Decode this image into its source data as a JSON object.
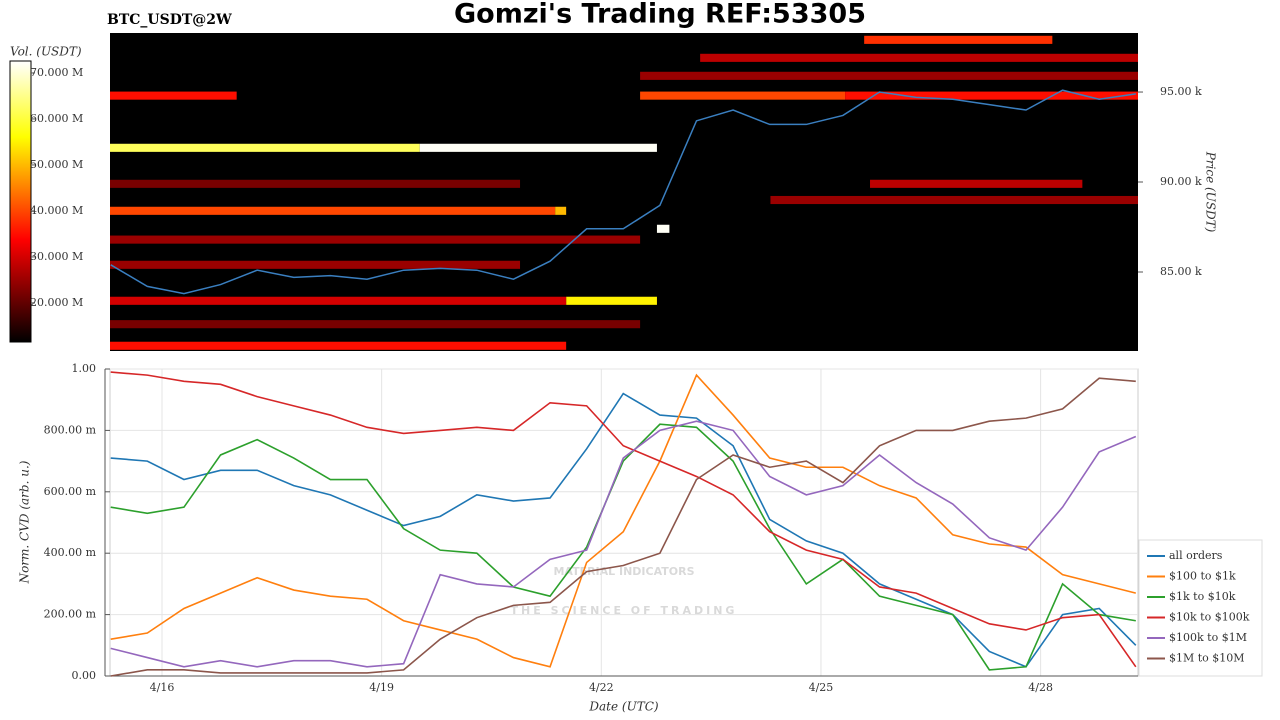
{
  "chart_data": [
    {
      "type": "heatmap",
      "title": "Gomzi's Trading REF:53305",
      "subtitle": "BTC_USDT@2W",
      "ylabel": "Price (USDT)",
      "xlim": [
        15.29,
        29.33
      ],
      "ylim": [
        80610,
        98280
      ],
      "yticks": [
        {
          "value": 85000,
          "label": "85.00 k"
        },
        {
          "value": 90000,
          "label": "90.00 k"
        },
        {
          "value": 95000,
          "label": "95.00 k"
        }
      ],
      "price_bin": 450,
      "colorbar": {
        "label": "Vol. (USDT)",
        "lim": [
          11.5,
          72.6
        ],
        "ticks": [
          {
            "value": 20,
            "label": "20.000 M"
          },
          {
            "value": 30,
            "label": "30.000 M"
          },
          {
            "value": 40,
            "label": "40.000 M"
          },
          {
            "value": 50,
            "label": "50.000 M"
          },
          {
            "value": 60,
            "label": "60.000 M"
          },
          {
            "value": 70,
            "label": "70.000 M"
          }
        ]
      },
      "cells": [
        {
          "x0": 15.29,
          "x1": 19.52,
          "price": 91900,
          "volume": 62
        },
        {
          "x0": 19.52,
          "x1": 22.76,
          "price": 91900,
          "volume": 72
        },
        {
          "x0": 15.29,
          "x1": 21.37,
          "price": 88400,
          "volume": 40
        },
        {
          "x0": 21.37,
          "x1": 21.52,
          "price": 88400,
          "volume": 50
        },
        {
          "x0": 15.29,
          "x1": 17.02,
          "price": 94800,
          "volume": 35
        },
        {
          "x0": 22.53,
          "x1": 25.33,
          "price": 94800,
          "volume": 40
        },
        {
          "x0": 25.33,
          "x1": 29.33,
          "price": 94800,
          "volume": 35
        },
        {
          "x0": 21.52,
          "x1": 22.76,
          "price": 83400,
          "volume": 55
        },
        {
          "x0": 15.29,
          "x1": 21.52,
          "price": 83400,
          "volume": 30
        },
        {
          "x0": 22.76,
          "x1": 22.93,
          "price": 87400,
          "volume": 72
        },
        {
          "x0": 15.29,
          "x1": 21.52,
          "price": 80900,
          "volume": 35
        },
        {
          "x0": 25.59,
          "x1": 28.16,
          "price": 97900,
          "volume": 38
        },
        {
          "x0": 23.35,
          "x1": 29.33,
          "price": 96900,
          "volume": 28
        },
        {
          "x0": 22.53,
          "x1": 29.33,
          "price": 95900,
          "volume": 25
        },
        {
          "x0": 25.67,
          "x1": 28.57,
          "price": 89900,
          "volume": 28
        },
        {
          "x0": 24.31,
          "x1": 29.33,
          "price": 89000,
          "volume": 25
        },
        {
          "x0": 15.29,
          "x1": 20.89,
          "price": 89900,
          "volume": 22
        },
        {
          "x0": 15.29,
          "x1": 22.53,
          "price": 86800,
          "volume": 25
        },
        {
          "x0": 15.29,
          "x1": 22.53,
          "price": 82100,
          "volume": 22
        },
        {
          "x0": 15.29,
          "x1": 20.89,
          "price": 85400,
          "volume": 25
        }
      ],
      "price_line": {
        "color": "#3a7fc0",
        "x": [
          15.3,
          15.8,
          16.3,
          16.8,
          17.3,
          17.8,
          18.3,
          18.8,
          19.3,
          19.8,
          20.3,
          20.8,
          21.3,
          21.8,
          22.3,
          22.8,
          23.3,
          23.8,
          24.3,
          24.8,
          25.3,
          25.8,
          26.3,
          26.8,
          27.3,
          27.8,
          28.3,
          28.8,
          29.3
        ],
        "values": [
          85400,
          84200,
          83800,
          84300,
          85100,
          84700,
          84800,
          84600,
          85100,
          85200,
          85100,
          84600,
          85600,
          87400,
          87400,
          88700,
          93400,
          94000,
          93200,
          93200,
          93700,
          95000,
          94700,
          94600,
          94300,
          94000,
          95100,
          94600,
          94900
        ]
      }
    },
    {
      "type": "line",
      "xlabel": "Date (UTC)",
      "ylabel": "Norm. CVD (arb. u.)",
      "xlim": [
        15.29,
        29.33
      ],
      "xticks": [
        {
          "value": 16,
          "label": "4/16"
        },
        {
          "value": 19,
          "label": "4/19"
        },
        {
          "value": 22,
          "label": "4/22"
        },
        {
          "value": 25,
          "label": "4/25"
        },
        {
          "value": 28,
          "label": "4/28"
        }
      ],
      "ylim": [
        0,
        1
      ],
      "yticks": [
        {
          "value": 0,
          "label": "0.00"
        },
        {
          "value": 0.2,
          "label": "200.00 m"
        },
        {
          "value": 0.4,
          "label": "400.00 m"
        },
        {
          "value": 0.6,
          "label": "600.00 m"
        },
        {
          "value": 0.8,
          "label": "800.00 m"
        },
        {
          "value": 1,
          "label": "1.00"
        }
      ],
      "grid": true,
      "legend": "right",
      "watermark": {
        "title": "MATERIAL INDICATORS",
        "subtitle": "THE SCIENCE OF TRADING"
      },
      "x": [
        15.3,
        15.8,
        16.3,
        16.8,
        17.3,
        17.8,
        18.3,
        18.8,
        19.3,
        19.8,
        20.3,
        20.8,
        21.3,
        21.8,
        22.3,
        22.8,
        23.3,
        23.8,
        24.3,
        24.8,
        25.3,
        25.8,
        26.3,
        26.8,
        27.3,
        27.8,
        28.3,
        28.8,
        29.3
      ],
      "series": [
        {
          "name": "all orders",
          "color": "#1f77b4",
          "values": [
            0.71,
            0.7,
            0.64,
            0.67,
            0.67,
            0.62,
            0.59,
            0.54,
            0.49,
            0.52,
            0.59,
            0.57,
            0.58,
            0.74,
            0.92,
            0.85,
            0.84,
            0.75,
            0.51,
            0.44,
            0.4,
            0.3,
            0.25,
            0.2,
            0.08,
            0.03,
            0.2,
            0.22,
            0.1
          ]
        },
        {
          "name": "$100 to $1k",
          "color": "#ff7f0e",
          "values": [
            0.12,
            0.14,
            0.22,
            0.27,
            0.32,
            0.28,
            0.26,
            0.25,
            0.18,
            0.15,
            0.12,
            0.06,
            0.03,
            0.37,
            0.47,
            0.7,
            0.98,
            0.85,
            0.71,
            0.68,
            0.68,
            0.62,
            0.58,
            0.46,
            0.43,
            0.42,
            0.33,
            0.3,
            0.27
          ]
        },
        {
          "name": "$1k to $10k",
          "color": "#2ca02c",
          "values": [
            0.55,
            0.53,
            0.55,
            0.72,
            0.77,
            0.71,
            0.64,
            0.64,
            0.48,
            0.41,
            0.4,
            0.29,
            0.26,
            0.42,
            0.7,
            0.82,
            0.81,
            0.7,
            0.48,
            0.3,
            0.38,
            0.26,
            0.23,
            0.2,
            0.02,
            0.03,
            0.3,
            0.2,
            0.18
          ]
        },
        {
          "name": "$10k to $100k",
          "color": "#d62728",
          "values": [
            0.99,
            0.98,
            0.96,
            0.95,
            0.91,
            0.88,
            0.85,
            0.81,
            0.79,
            0.8,
            0.81,
            0.8,
            0.89,
            0.88,
            0.75,
            0.7,
            0.65,
            0.59,
            0.47,
            0.41,
            0.38,
            0.29,
            0.27,
            0.22,
            0.17,
            0.15,
            0.19,
            0.2,
            0.03
          ]
        },
        {
          "name": "$100k to $1M",
          "color": "#9467bd",
          "values": [
            0.09,
            0.06,
            0.03,
            0.05,
            0.03,
            0.05,
            0.05,
            0.03,
            0.04,
            0.33,
            0.3,
            0.29,
            0.38,
            0.41,
            0.71,
            0.8,
            0.83,
            0.8,
            0.65,
            0.59,
            0.62,
            0.72,
            0.63,
            0.56,
            0.45,
            0.41,
            0.55,
            0.73,
            0.78
          ]
        },
        {
          "name": "$1M to $10M",
          "color": "#8c564b",
          "values": [
            0.0,
            0.02,
            0.02,
            0.01,
            0.01,
            0.01,
            0.01,
            0.01,
            0.02,
            0.12,
            0.19,
            0.23,
            0.24,
            0.34,
            0.36,
            0.4,
            0.64,
            0.72,
            0.68,
            0.7,
            0.63,
            0.75,
            0.8,
            0.8,
            0.83,
            0.84,
            0.87,
            0.97,
            0.96
          ]
        }
      ]
    }
  ]
}
